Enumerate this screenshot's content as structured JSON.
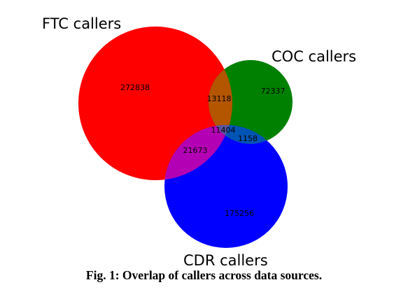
{
  "venn": {
    "sets": [
      {
        "key": "ftc",
        "label": "FTC callers",
        "color": "#ff0000"
      },
      {
        "key": "coc",
        "label": "COC callers",
        "color": "#008000"
      },
      {
        "key": "cdr",
        "label": "CDR callers",
        "color": "#0000ff"
      }
    ],
    "regions": {
      "ftc_only": "272838",
      "coc_only": "72337",
      "cdr_only": "175256",
      "ftc_coc": "13118",
      "ftc_cdr": "21673",
      "coc_cdr": "1158",
      "all_three": "11404"
    },
    "overlap_colors": {
      "ftc_coc": "#b45500",
      "ftc_cdr": "#b400b4",
      "coc_cdr": "#0055b4",
      "all_three": "#5a55a0"
    }
  },
  "caption": "Fig. 1: Overlap of callers across data sources."
}
